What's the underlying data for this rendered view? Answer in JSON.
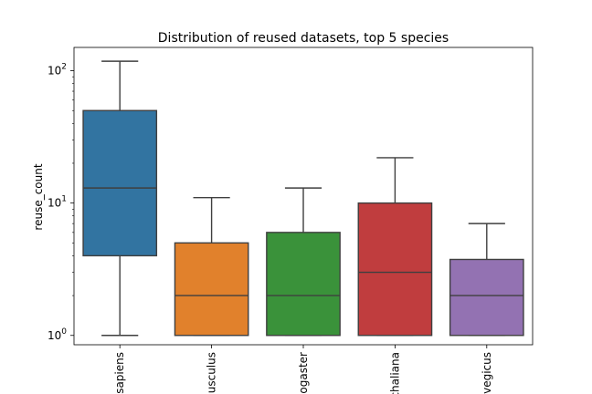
{
  "chart_data": {
    "type": "box",
    "title": "Distribution of reused datasets, top 5 species",
    "xlabel": "",
    "ylabel": "reuse_count",
    "yscale": "log",
    "ylim": [
      0.85,
      150
    ],
    "yticks": [
      {
        "value": 1,
        "base": "10",
        "exp": "0"
      },
      {
        "value": 10,
        "base": "10",
        "exp": "1"
      },
      {
        "value": 100,
        "base": "10",
        "exp": "2"
      }
    ],
    "categories": [
      "sapiens",
      "usculus",
      "ogaster",
      "chaliana",
      "vegicus"
    ],
    "boxes": [
      {
        "category": "sapiens",
        "whisker_low": 1,
        "q1": 4,
        "median": 13,
        "q3": 50,
        "whisker_high": 118,
        "color": "#3274a1"
      },
      {
        "category": "usculus",
        "whisker_low": 1,
        "q1": 1,
        "median": 2,
        "q3": 5,
        "whisker_high": 11,
        "color": "#e1812c"
      },
      {
        "category": "ogaster",
        "whisker_low": 1,
        "q1": 1,
        "median": 2,
        "q3": 6,
        "whisker_high": 13,
        "color": "#3a923a"
      },
      {
        "category": "chaliana",
        "whisker_low": 1,
        "q1": 1,
        "median": 3,
        "q3": 10,
        "whisker_high": 22,
        "color": "#c03d3e"
      },
      {
        "category": "vegicus",
        "whisker_low": 1,
        "q1": 1,
        "median": 2,
        "q3": 3.75,
        "whisker_high": 7,
        "color": "#9372b2"
      }
    ],
    "grid": false,
    "legend": "none"
  }
}
